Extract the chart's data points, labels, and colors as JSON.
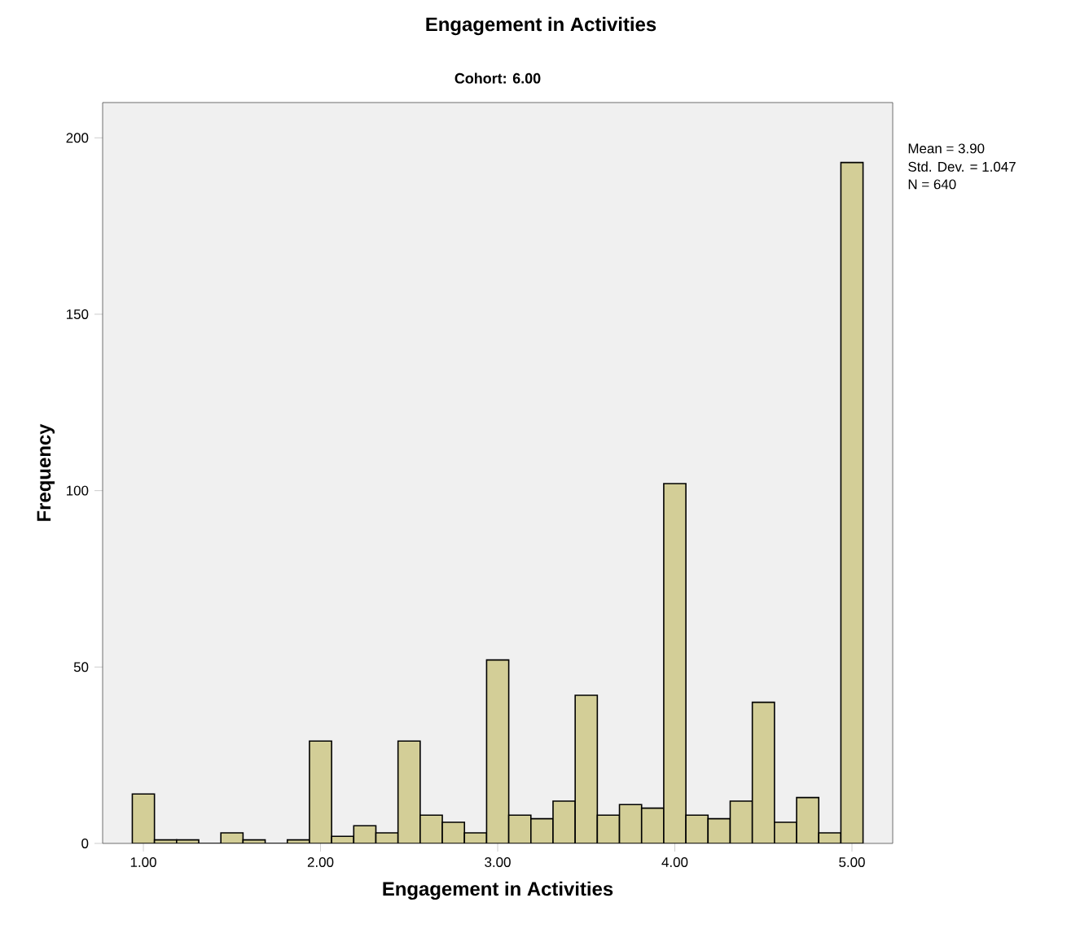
{
  "chart_data": {
    "type": "histogram",
    "title": "Engagement in Activities",
    "subtitle": "Cohort: 6.00",
    "xlabel": "Engagement in Activities",
    "ylabel": "Frequency",
    "bins": [
      0.9375,
      1.0625,
      1.1875,
      1.3125,
      1.4375,
      1.5625,
      1.6875,
      1.8125,
      1.9375,
      2.0625,
      2.1875,
      2.3125,
      2.4375,
      2.5625,
      2.6875,
      2.8125,
      2.9375,
      3.0625,
      3.1875,
      3.3125,
      3.4375,
      3.5625,
      3.6875,
      3.8125,
      3.9375,
      4.0625,
      4.1875,
      4.3125,
      4.4375,
      4.5625,
      4.6875,
      4.8125,
      4.9375,
      5.0625
    ],
    "values": [
      14,
      1,
      1,
      0,
      3,
      1,
      0,
      1,
      29,
      2,
      5,
      3,
      29,
      8,
      6,
      3,
      52,
      8,
      7,
      12,
      42,
      8,
      11,
      10,
      102,
      8,
      7,
      12,
      40,
      6,
      13,
      3,
      193
    ],
    "color": "#d3ce97",
    "xlim": [
      0.77,
      5.23
    ],
    "ylim": [
      0,
      210
    ],
    "xticks": [
      {
        "value": 1,
        "label": "1.00"
      },
      {
        "value": 2,
        "label": "2.00"
      },
      {
        "value": 3,
        "label": "3.00"
      },
      {
        "value": 4,
        "label": "4.00"
      },
      {
        "value": 5,
        "label": "5.00"
      }
    ],
    "yticks": [
      0,
      50,
      100,
      150,
      200
    ],
    "annotations": [
      "Mean = 3.90",
      "Std. Dev. = 1.047",
      "N = 640"
    ]
  }
}
